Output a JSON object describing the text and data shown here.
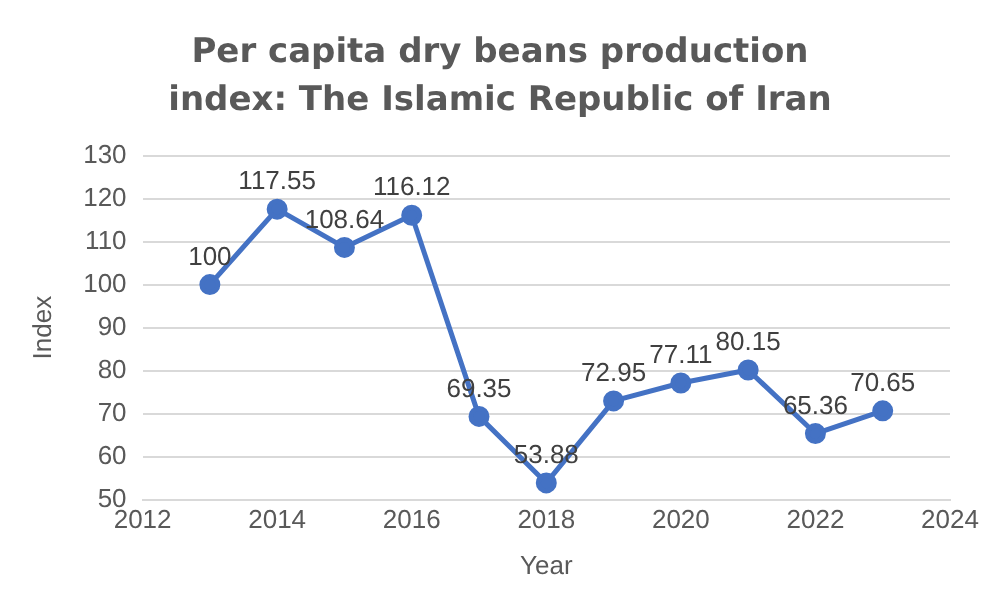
{
  "chart_data": {
    "type": "line",
    "title": "Per capita dry beans production index: The Islamic Republic of Iran",
    "xlabel": "Year",
    "ylabel": "Index",
    "x": [
      2013,
      2014,
      2015,
      2016,
      2017,
      2018,
      2019,
      2020,
      2021,
      2022,
      2023
    ],
    "series": [
      {
        "color": "#4472c4",
        "values": [
          100,
          117.55,
          108.64,
          116.12,
          69.35,
          53.88,
          72.95,
          77.11,
          80.15,
          65.36,
          70.65
        ]
      }
    ],
    "xlim": [
      2012,
      2024
    ],
    "xticks": [
      2012,
      2014,
      2016,
      2018,
      2020,
      2022,
      2024
    ],
    "ylim": [
      50,
      130
    ],
    "yticks": [
      50,
      60,
      70,
      80,
      90,
      100,
      110,
      120,
      130
    ],
    "grid": "y",
    "marker": "circle",
    "line_style": "solid",
    "data_labels": true,
    "legend": false
  }
}
